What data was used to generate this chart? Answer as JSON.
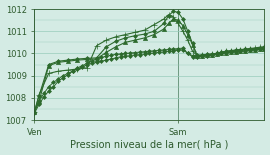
{
  "xlabel": "Pression niveau de la mer( hPa )",
  "bg_color": "#d4ebe4",
  "grid_color": "#99ccbb",
  "line_color": "#2d6a2d",
  "ylim": [
    1007,
    1012
  ],
  "xlim": [
    0,
    48
  ],
  "ven_x": 0,
  "sam_x": 30,
  "series": [
    [
      0,
      1007.3,
      1,
      1007.7,
      2,
      1008.05,
      3,
      1008.3,
      4,
      1008.5,
      5,
      1008.75,
      6,
      1008.9,
      7,
      1009.05,
      8,
      1009.2,
      9,
      1009.35,
      10,
      1009.45,
      11,
      1009.55,
      12,
      1009.65,
      13,
      1009.75,
      14,
      1009.82,
      15,
      1009.87,
      16,
      1009.92,
      17,
      1009.96,
      18,
      1009.98,
      19,
      1010.0,
      20,
      1010.02,
      21,
      1010.04,
      22,
      1010.06,
      23,
      1010.08,
      24,
      1010.1,
      25,
      1010.12,
      26,
      1010.14,
      27,
      1010.16,
      28,
      1010.18,
      29,
      1010.2,
      30,
      1010.22,
      31,
      1010.24,
      32,
      1010.0,
      33,
      1009.85,
      34,
      1009.88,
      35,
      1009.9,
      36,
      1009.92,
      37,
      1009.95,
      38,
      1009.97,
      39,
      1010.0,
      40,
      1010.05,
      41,
      1010.1,
      42,
      1010.12,
      43,
      1010.15,
      44,
      1010.18,
      45,
      1010.2,
      46,
      1010.22,
      47,
      1010.25,
      48,
      1010.28
    ],
    [
      0,
      1007.35,
      1,
      1007.85,
      2,
      1008.2,
      3,
      1008.5,
      4,
      1008.7,
      5,
      1008.85,
      6,
      1009.0,
      7,
      1009.1,
      8,
      1009.2,
      9,
      1009.3,
      10,
      1009.4,
      11,
      1009.48,
      12,
      1009.55,
      13,
      1009.6,
      14,
      1009.65,
      15,
      1009.7,
      16,
      1009.75,
      17,
      1009.8,
      18,
      1009.85,
      19,
      1009.88,
      20,
      1009.9,
      21,
      1009.93,
      22,
      1009.95,
      23,
      1009.97,
      24,
      1010.0,
      25,
      1010.02,
      26,
      1010.05,
      27,
      1010.07,
      28,
      1010.1,
      29,
      1010.12,
      30,
      1010.15,
      31,
      1010.17,
      32,
      1010.0,
      33,
      1009.9,
      34,
      1009.92,
      35,
      1009.94,
      36,
      1009.96,
      37,
      1009.98,
      38,
      1010.0,
      39,
      1010.02,
      40,
      1010.04,
      41,
      1010.06,
      42,
      1010.08,
      43,
      1010.1,
      44,
      1010.12,
      45,
      1010.14,
      46,
      1010.16,
      47,
      1010.18,
      48,
      1010.2
    ],
    [
      0,
      1007.35,
      1,
      1008.1,
      3,
      1009.5,
      5,
      1009.65,
      7,
      1009.7,
      9,
      1009.75,
      11,
      1009.78,
      13,
      1009.8,
      15,
      1010.3,
      17,
      1010.55,
      19,
      1010.7,
      21,
      1010.8,
      23,
      1010.87,
      25,
      1011.0,
      27,
      1011.35,
      28,
      1011.7,
      29,
      1011.9,
      30,
      1011.85,
      31,
      1011.55,
      32,
      1011.0,
      33,
      1010.45,
      34,
      1009.85,
      35,
      1009.88,
      36,
      1009.9,
      37,
      1009.95,
      38,
      1010.0,
      39,
      1010.05,
      40,
      1010.1,
      41,
      1010.12,
      42,
      1010.15,
      43,
      1010.17,
      44,
      1010.18,
      45,
      1010.2,
      46,
      1010.22,
      47,
      1010.25,
      48,
      1010.27
    ],
    [
      0,
      1007.35,
      1,
      1007.85,
      3,
      1009.45,
      5,
      1009.6,
      7,
      1009.65,
      9,
      1009.7,
      11,
      1009.73,
      13,
      1009.75,
      15,
      1010.05,
      17,
      1010.3,
      19,
      1010.5,
      21,
      1010.6,
      23,
      1010.7,
      25,
      1010.85,
      27,
      1011.1,
      28,
      1011.35,
      29,
      1011.55,
      30,
      1011.5,
      31,
      1011.25,
      32,
      1010.85,
      33,
      1010.4,
      34,
      1009.88,
      35,
      1009.9,
      36,
      1009.92,
      37,
      1009.95,
      38,
      1009.98,
      39,
      1010.0,
      40,
      1010.02,
      41,
      1010.05,
      42,
      1010.07,
      43,
      1010.1,
      44,
      1010.12,
      45,
      1010.14,
      46,
      1010.17,
      47,
      1010.19,
      48,
      1010.22
    ],
    [
      0,
      1007.35,
      1,
      1008.15,
      3,
      1009.1,
      5,
      1009.2,
      7,
      1009.25,
      9,
      1009.3,
      11,
      1009.35,
      13,
      1010.35,
      15,
      1010.6,
      17,
      1010.75,
      19,
      1010.85,
      21,
      1010.95,
      23,
      1011.05,
      25,
      1011.3,
      27,
      1011.55,
      28,
      1011.75,
      29,
      1011.65,
      30,
      1011.35,
      31,
      1011.0,
      32,
      1010.6,
      33,
      1010.1,
      34,
      1009.9,
      35,
      1009.92,
      36,
      1009.95,
      37,
      1009.97,
      38,
      1010.0,
      39,
      1010.05,
      40,
      1010.1,
      41,
      1010.12,
      42,
      1010.15,
      43,
      1010.17,
      44,
      1010.2,
      45,
      1010.22,
      46,
      1010.25,
      47,
      1010.28,
      48,
      1010.3
    ]
  ],
  "marker_styles": [
    "D",
    "D",
    "D",
    "^",
    "+"
  ],
  "marker_sizes": [
    2,
    2,
    2,
    3,
    4
  ],
  "linewidths": [
    0.7,
    0.7,
    0.8,
    0.8,
    0.8
  ],
  "tick_fontsize": 6,
  "xlabel_fontsize": 7
}
